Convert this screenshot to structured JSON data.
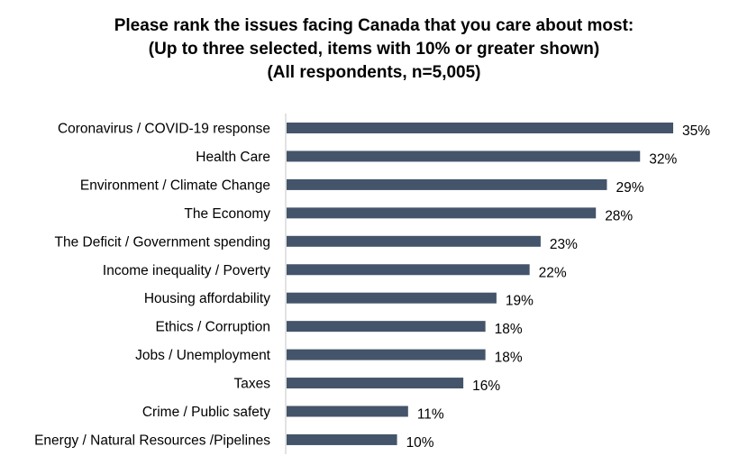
{
  "chart_data": {
    "type": "bar",
    "orientation": "horizontal",
    "title_lines": [
      "Please rank the issues facing Canada that you care about most:",
      "(Up to three selected, items with 10% or greater shown)",
      "(All respondents, n=5,005)"
    ],
    "categories": [
      "Coronavirus / COVID-19 response",
      "Health Care",
      "Environment / Climate Change",
      "The Economy",
      "The Deficit / Government spending",
      "Income inequality / Poverty",
      "Housing affordability",
      "Ethics / Corruption",
      "Jobs / Unemployment",
      "Taxes",
      "Crime / Public safety",
      "Energy / Natural Resources /Pipelines"
    ],
    "values": [
      35,
      32,
      29,
      28,
      23,
      22,
      19,
      18,
      18,
      16,
      11,
      10
    ],
    "value_labels": [
      "35%",
      "32%",
      "29%",
      "28%",
      "23%",
      "22%",
      "19%",
      "18%",
      "18%",
      "16%",
      "11%",
      "10%"
    ],
    "xlim": [
      0,
      35
    ],
    "bar_color": "#44546a",
    "axis_color": "#d9d9d9",
    "grid": false,
    "legend": "none"
  }
}
